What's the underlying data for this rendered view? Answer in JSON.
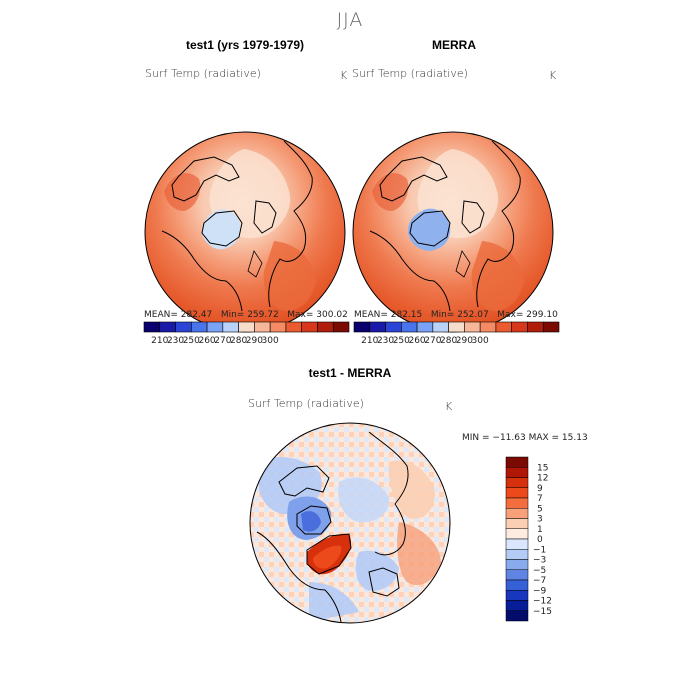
{
  "page": {
    "title": "JJA"
  },
  "panels": [
    {
      "title": "test1 (yrs 1979-1979)",
      "variable": "Surf Temp (radiative)",
      "units": "K",
      "mean_text": "MEAN=  282.47",
      "min_text": "Min=  259.72",
      "max_text": "Max=  300.02"
    },
    {
      "title": "MERRA",
      "variable": "Surf Temp (radiative)",
      "units": "K",
      "mean_text": "MEAN=  282.15",
      "min_text": "Min=  252.07",
      "max_text": "Max=  299.10"
    },
    {
      "title": "test1 - MERRA",
      "variable": "Surf Temp (radiative)",
      "units": "K",
      "minmax_text": "MIN = −11.63  MAX =   15.13"
    }
  ],
  "chart_data": [
    {
      "type": "heatmap",
      "title": "test1 (yrs 1979-1979)",
      "subtitle": "Surf Temp (radiative)",
      "units": "K",
      "projection": "north polar stereographic",
      "mean": 282.47,
      "min": 259.72,
      "max": 300.02,
      "colorbar": {
        "ticks": [
          210,
          230,
          250,
          260,
          270,
          280,
          290,
          300
        ]
      }
    },
    {
      "type": "heatmap",
      "title": "MERRA",
      "subtitle": "Surf Temp (radiative)",
      "units": "K",
      "projection": "north polar stereographic",
      "mean": 282.15,
      "min": 252.07,
      "max": 299.1,
      "colorbar": {
        "ticks": [
          210,
          230,
          250,
          260,
          270,
          280,
          290,
          300
        ]
      }
    },
    {
      "type": "heatmap",
      "title": "test1 - MERRA",
      "subtitle": "Surf Temp (radiative)",
      "units": "K",
      "projection": "north polar stereographic",
      "min": -11.63,
      "max": 15.13,
      "colorbar": {
        "ticks": [
          15,
          12,
          9,
          7,
          5,
          3,
          1,
          0,
          -1,
          -3,
          -5,
          -7,
          -9,
          -12,
          -15
        ]
      }
    }
  ],
  "colors": {
    "abs_scale": [
      "#08016e",
      "#1a1aa8",
      "#2b44d6",
      "#4a74ec",
      "#7aa3f6",
      "#b8d2f9",
      "#f6dccb",
      "#f7b79a",
      "#f58b64",
      "#ec5a2f",
      "#d7381b",
      "#b11d0b",
      "#7a0a02"
    ],
    "diff_scale": [
      "#7a0a02",
      "#b01706",
      "#d7300d",
      "#ed4a1b",
      "#f46d3f",
      "#f8a07a",
      "#fbcfb4",
      "#fdecdf",
      "#d9e6fb",
      "#b4cbf5",
      "#8aaaee",
      "#5f84e4",
      "#3560d6",
      "#1936bf",
      "#081e98",
      "#030c6b"
    ]
  }
}
